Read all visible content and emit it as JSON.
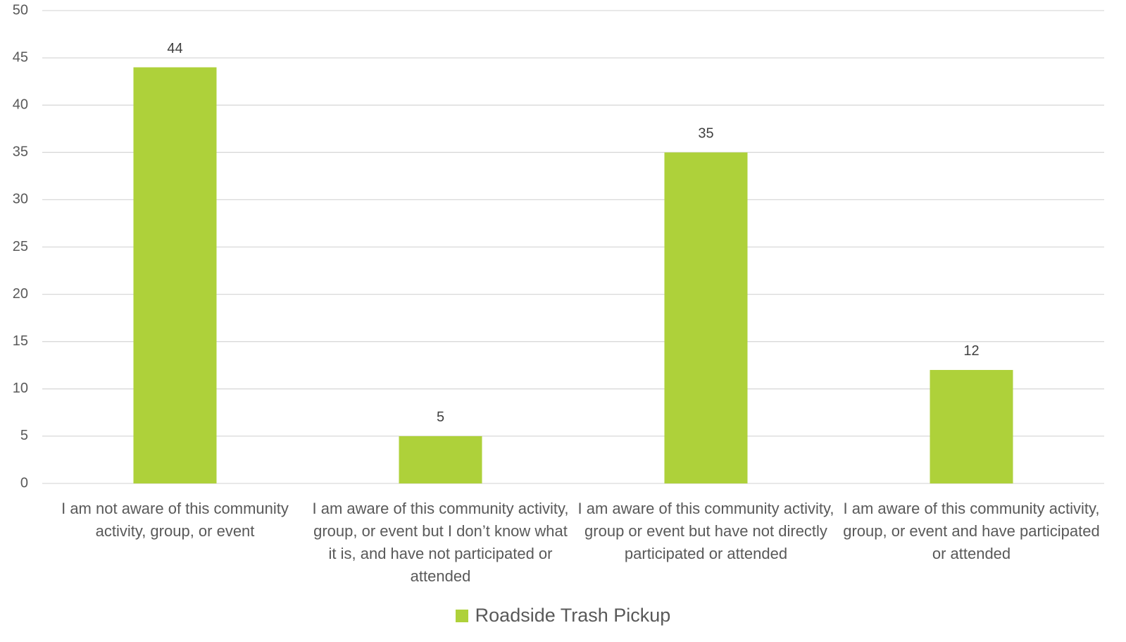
{
  "chart_data": {
    "type": "bar",
    "categories": [
      "I am not aware of this community activity, group, or event",
      "I am aware of this community activity, group, or event but I don’t know what it is, and have not participated or attended",
      "I am aware of this community activity, group or event but have not directly participated or attended",
      "I am aware of this community activity, group, or event and have participated or attended"
    ],
    "series": [
      {
        "name": "Roadside Trash Pickup",
        "color": "#aed13a",
        "values": [
          44,
          5,
          35,
          12
        ]
      }
    ],
    "ylim": [
      0,
      50
    ],
    "yticks": [
      0,
      5,
      10,
      15,
      20,
      25,
      30,
      35,
      40,
      45,
      50
    ],
    "grid": true,
    "legend": "bottom"
  }
}
